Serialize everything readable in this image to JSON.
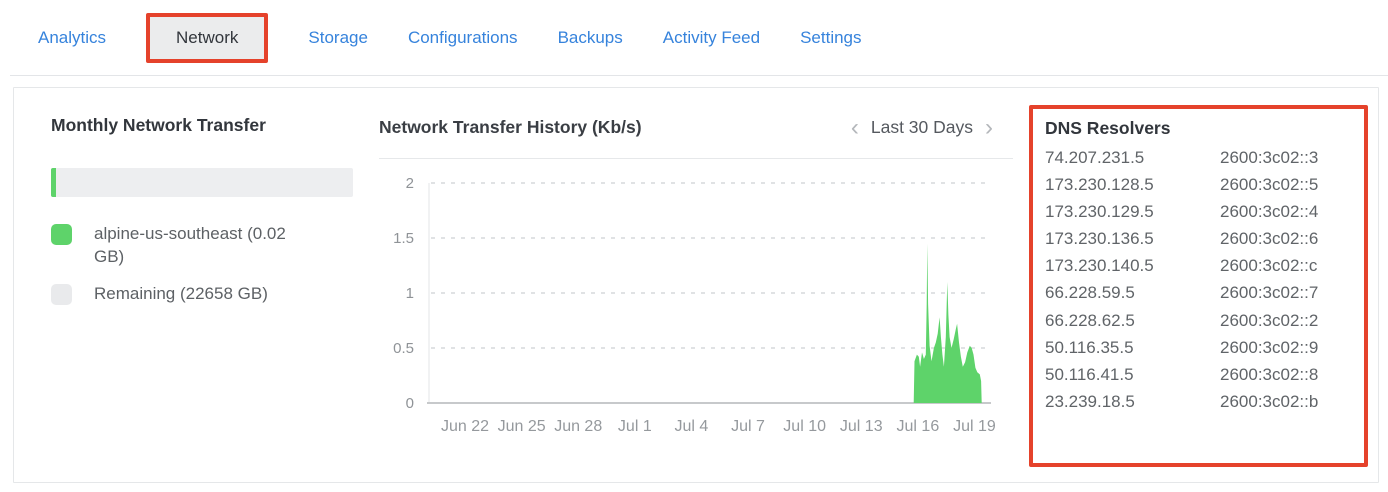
{
  "tabs": {
    "items": [
      {
        "label": "Analytics",
        "active": false
      },
      {
        "label": "Network",
        "active": true,
        "highlighted": true
      },
      {
        "label": "Storage",
        "active": false
      },
      {
        "label": "Configurations",
        "active": false
      },
      {
        "label": "Backups",
        "active": false
      },
      {
        "label": "Activity Feed",
        "active": false
      },
      {
        "label": "Settings",
        "active": false
      }
    ]
  },
  "monthly_transfer": {
    "title": "Monthly Network Transfer",
    "legend": [
      {
        "label": "alpine-us-southeast (0.02 GB)",
        "color": "#5ed36a"
      },
      {
        "label": "Remaining (22658 GB)",
        "color": "#e9eaec"
      }
    ]
  },
  "chart": {
    "title": "Network Transfer History (Kb/s)",
    "range_label": "Last 30 Days",
    "prev_icon": "‹",
    "next_icon": "›"
  },
  "chart_data": {
    "type": "area",
    "title": "Network Transfer History (Kb/s)",
    "unit": "Kb/s",
    "ylim": [
      0,
      2
    ],
    "yticks": [
      0,
      0.5,
      1,
      1.5,
      2
    ],
    "xtick_labels": [
      "Jun 22",
      "Jun 25",
      "Jun 28",
      "Jul 1",
      "Jul 4",
      "Jul 7",
      "Jul 10",
      "Jul 13",
      "Jul 16",
      "Jul 19"
    ],
    "xtick_days": [
      0,
      3,
      6,
      9,
      12,
      15,
      18,
      21,
      24,
      27
    ],
    "x_axis_note": "x expressed as days after Jun 22; traffic is zero until ~Jul 15",
    "grid": "dashed-horizontal",
    "legend_position": "none",
    "series": [
      {
        "name": "alpine-us-southeast",
        "color": "#5ed36a",
        "points": [
          [
            23.78,
            0
          ],
          [
            23.82,
            0.38
          ],
          [
            23.95,
            0.44
          ],
          [
            24.05,
            0.42
          ],
          [
            24.12,
            0.33
          ],
          [
            24.22,
            0.46
          ],
          [
            24.32,
            0.4
          ],
          [
            24.42,
            0.44
          ],
          [
            24.47,
            0.9
          ],
          [
            24.5,
            1.45
          ],
          [
            24.54,
            0.9
          ],
          [
            24.62,
            0.52
          ],
          [
            24.72,
            0.38
          ],
          [
            24.85,
            0.5
          ],
          [
            24.95,
            0.55
          ],
          [
            25.05,
            0.63
          ],
          [
            25.15,
            0.78
          ],
          [
            25.22,
            0.6
          ],
          [
            25.3,
            0.44
          ],
          [
            25.38,
            0.33
          ],
          [
            25.48,
            0.6
          ],
          [
            25.56,
            1.1
          ],
          [
            25.62,
            0.8
          ],
          [
            25.68,
            0.6
          ],
          [
            25.78,
            0.5
          ],
          [
            25.9,
            0.58
          ],
          [
            26.02,
            0.68
          ],
          [
            26.08,
            0.72
          ],
          [
            26.18,
            0.55
          ],
          [
            26.28,
            0.42
          ],
          [
            26.38,
            0.33
          ],
          [
            26.5,
            0.37
          ],
          [
            26.62,
            0.46
          ],
          [
            26.75,
            0.52
          ],
          [
            26.85,
            0.5
          ],
          [
            26.95,
            0.44
          ],
          [
            27.05,
            0.32
          ],
          [
            27.15,
            0.28
          ],
          [
            27.28,
            0.26
          ],
          [
            27.35,
            0.2
          ],
          [
            27.38,
            0
          ]
        ]
      }
    ]
  },
  "dns_resolvers": {
    "title": "DNS Resolvers",
    "rows": [
      {
        "ipv4": "74.207.231.5",
        "ipv6": "2600:3c02::3"
      },
      {
        "ipv4": "173.230.128.5",
        "ipv6": "2600:3c02::5"
      },
      {
        "ipv4": "173.230.129.5",
        "ipv6": "2600:3c02::4"
      },
      {
        "ipv4": "173.230.136.5",
        "ipv6": "2600:3c02::6"
      },
      {
        "ipv4": "173.230.140.5",
        "ipv6": "2600:3c02::c"
      },
      {
        "ipv4": "66.228.59.5",
        "ipv6": "2600:3c02::7"
      },
      {
        "ipv4": "66.228.62.5",
        "ipv6": "2600:3c02::2"
      },
      {
        "ipv4": "50.116.35.5",
        "ipv6": "2600:3c02::9"
      },
      {
        "ipv4": "50.116.41.5",
        "ipv6": "2600:3c02::8"
      },
      {
        "ipv4": "23.239.18.5",
        "ipv6": "2600:3c02::b"
      }
    ]
  },
  "colors": {
    "highlight_red": "#e5422b",
    "tab_blue": "#3683dc",
    "green": "#5ed36a",
    "title_text": "#32363c",
    "body_text": "#5f6368",
    "axis_text": "#8f9397"
  }
}
